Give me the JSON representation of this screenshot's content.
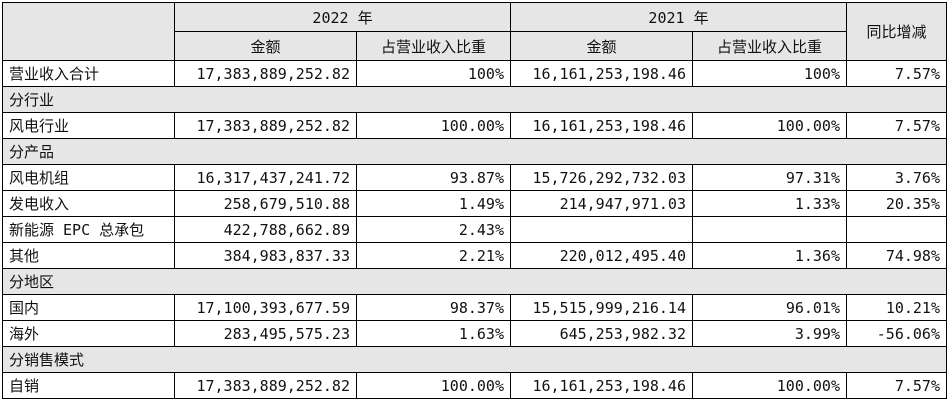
{
  "header": {
    "year_2022": "2022 年",
    "year_2021": "2021 年",
    "yoy": "同比增减",
    "amount": "金额",
    "share": "占营业收入比重"
  },
  "rows": {
    "total": {
      "label": "营业收入合计",
      "amt22": "17,383,889,252.82",
      "pct22": "100%",
      "amt21": "16,161,253,198.46",
      "pct21": "100%",
      "yoy": "7.57%"
    },
    "cat_industry": "分行业",
    "wind_industry": {
      "label": "风电行业",
      "amt22": "17,383,889,252.82",
      "pct22": "100.00%",
      "amt21": "16,161,253,198.46",
      "pct21": "100.00%",
      "yoy": "7.57%"
    },
    "cat_product": "分产品",
    "turbines": {
      "label": "风电机组",
      "amt22": "16,317,437,241.72",
      "pct22": "93.87%",
      "amt21": "15,726,292,732.03",
      "pct21": "97.31%",
      "yoy": "3.76%"
    },
    "power_gen": {
      "label": "发电收入",
      "amt22": "258,679,510.88",
      "pct22": "1.49%",
      "amt21": "214,947,971.03",
      "pct21": "1.33%",
      "yoy": "20.35%"
    },
    "epc": {
      "label": "新能源 EPC 总承包",
      "amt22": "422,788,662.89",
      "pct22": "2.43%",
      "amt21": "",
      "pct21": "",
      "yoy": ""
    },
    "other": {
      "label": "其他",
      "amt22": "384,983,837.33",
      "pct22": "2.21%",
      "amt21": "220,012,495.40",
      "pct21": "1.36%",
      "yoy": "74.98%"
    },
    "cat_region": "分地区",
    "domestic": {
      "label": "国内",
      "amt22": "17,100,393,677.59",
      "pct22": "98.37%",
      "amt21": "15,515,999,216.14",
      "pct21": "96.01%",
      "yoy": "10.21%"
    },
    "overseas": {
      "label": "海外",
      "amt22": "283,495,575.23",
      "pct22": "1.63%",
      "amt21": "645,253,982.32",
      "pct21": "3.99%",
      "yoy": "-56.06%"
    },
    "cat_sales": "分销售模式",
    "direct": {
      "label": "自销",
      "amt22": "17,383,889,252.82",
      "pct22": "100.00%",
      "amt21": "16,161,253,198.46",
      "pct21": "100.00%",
      "yoy": "7.57%"
    }
  }
}
